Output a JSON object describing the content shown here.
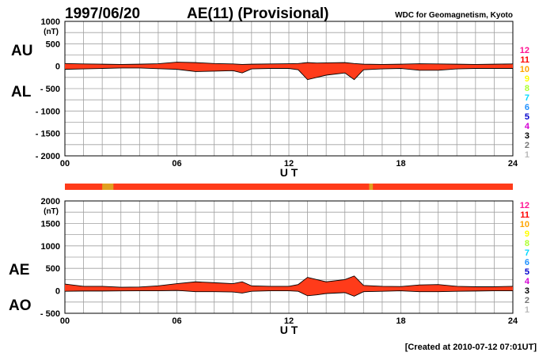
{
  "header": {
    "date": "1997/06/20",
    "title": "AE(11) (Provisional)",
    "source": "WDC for Geomagnetism, Kyoto"
  },
  "footer": {
    "created": "[Created at 2010-07-12 07:01UT]"
  },
  "station_scale": {
    "labels": [
      "12",
      "11",
      "10",
      "9",
      "8",
      "7",
      "6",
      "5",
      "4",
      "3",
      "2",
      "1"
    ],
    "colors": [
      "#ff1493",
      "#ff0000",
      "#ffa500",
      "#ffff00",
      "#adff2f",
      "#00d8ff",
      "#1e90ff",
      "#0000cd",
      "#d400d4",
      "#000000",
      "#777777",
      "#bbbbbb"
    ]
  },
  "status_bar": {
    "base_color": "#ff3b1a",
    "segments": [
      {
        "from": 2.0,
        "to": 2.6,
        "color": "#e0a020"
      },
      {
        "from": 16.3,
        "to": 16.5,
        "color": "#e0a020"
      }
    ]
  },
  "chart_data": [
    {
      "type": "area",
      "panel": "AU/AL",
      "series_labels": [
        "AU",
        "AL"
      ],
      "units": "(nT)",
      "xlabel": "U T",
      "xlim": [
        0,
        24
      ],
      "xticks": [
        "00",
        "06",
        "12",
        "18",
        "24"
      ],
      "ylim": [
        -2000,
        1000
      ],
      "yticks": [
        "1000",
        "500",
        "0",
        "- 500",
        "- 1000",
        "- 1500",
        "- 2000"
      ],
      "grid": true,
      "fill_color": "#ff3b1a",
      "x": [
        0,
        1,
        2,
        3,
        4,
        5,
        6,
        7,
        8,
        9,
        9.5,
        10,
        11,
        12,
        12.5,
        13,
        13.5,
        14,
        15,
        15.5,
        16,
        17,
        18,
        19,
        20,
        21,
        22,
        23,
        24
      ],
      "upper": [
        60,
        50,
        45,
        40,
        45,
        55,
        90,
        80,
        60,
        50,
        40,
        45,
        50,
        55,
        60,
        80,
        70,
        75,
        80,
        60,
        45,
        40,
        45,
        55,
        50,
        45,
        40,
        45,
        50
      ],
      "lower": [
        -70,
        -60,
        -50,
        -40,
        -40,
        -55,
        -70,
        -120,
        -110,
        -100,
        -150,
        -60,
        -50,
        -50,
        -80,
        -300,
        -250,
        -200,
        -150,
        -300,
        -80,
        -60,
        -50,
        -90,
        -90,
        -60,
        -50,
        -50,
        -50
      ]
    },
    {
      "type": "area",
      "panel": "AE/AO",
      "series_labels": [
        "AE",
        "AO"
      ],
      "units": "(nT)",
      "xlabel": "U T",
      "xlim": [
        0,
        24
      ],
      "xticks": [
        "00",
        "06",
        "12",
        "18",
        "24"
      ],
      "ylim": [
        -500,
        2000
      ],
      "yticks": [
        "2000",
        "1500",
        "1000",
        "500",
        "0",
        "- 500"
      ],
      "grid": true,
      "fill_color": "#ff3b1a",
      "x": [
        0,
        1,
        2,
        3,
        4,
        5,
        6,
        7,
        8,
        9,
        9.5,
        10,
        11,
        12,
        12.5,
        13,
        13.5,
        14,
        15,
        15.5,
        16,
        17,
        18,
        19,
        20,
        21,
        22,
        23,
        24
      ],
      "upper": [
        150,
        100,
        100,
        80,
        85,
        110,
        160,
        200,
        180,
        160,
        200,
        110,
        100,
        100,
        140,
        300,
        250,
        200,
        250,
        330,
        120,
        100,
        95,
        130,
        140,
        100,
        90,
        90,
        100
      ],
      "lower": [
        -10,
        -5,
        -5,
        -2,
        0,
        0,
        10,
        -20,
        -20,
        -25,
        -50,
        -10,
        0,
        0,
        -10,
        -110,
        -90,
        -60,
        -40,
        -120,
        -20,
        -10,
        0,
        -20,
        -20,
        -10,
        -5,
        0,
        0
      ]
    }
  ]
}
